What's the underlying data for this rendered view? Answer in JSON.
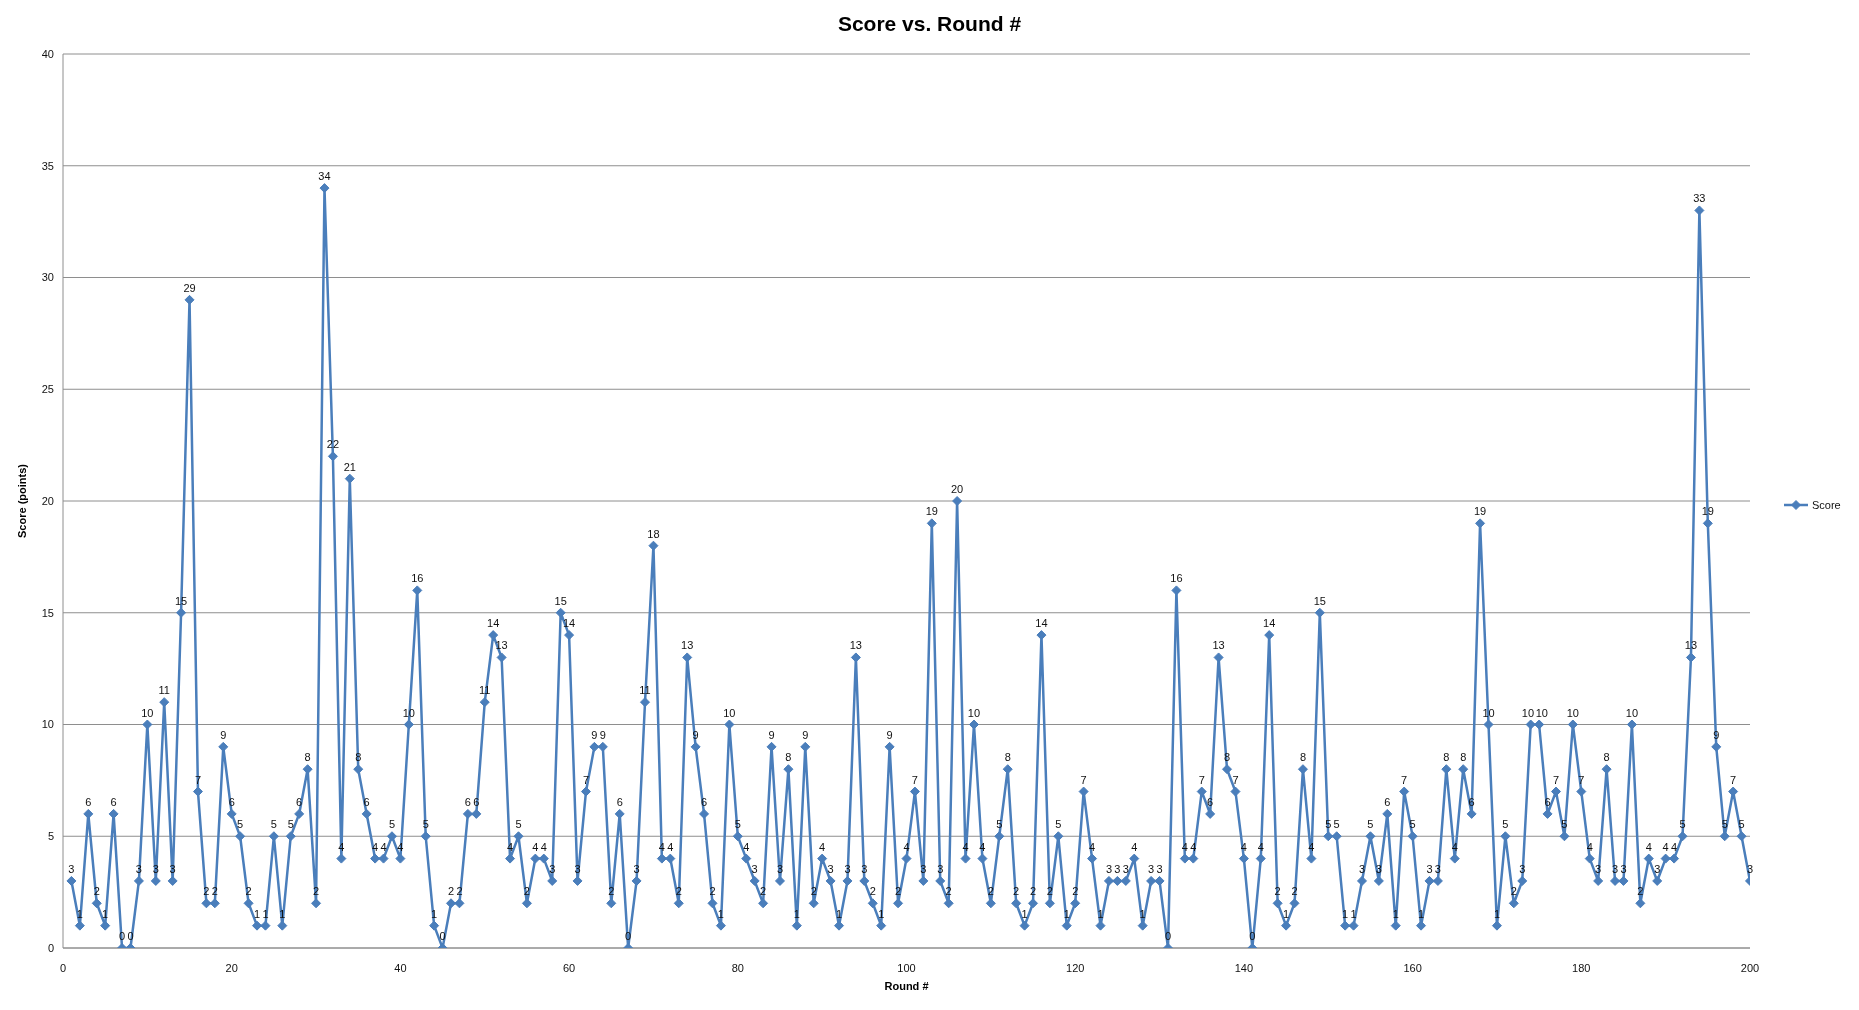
{
  "chart_data": {
    "type": "line",
    "title": "Score vs. Round #",
    "xlabel": "Round #",
    "ylabel": "Score (points)",
    "x": [
      1,
      2,
      3,
      4,
      5,
      6,
      7,
      8,
      9,
      10,
      11,
      12,
      13,
      14,
      15,
      16,
      17,
      18,
      19,
      20,
      21,
      22,
      23,
      24,
      25,
      26,
      27,
      28,
      29,
      30,
      31,
      32,
      33,
      34,
      35,
      36,
      37,
      38,
      39,
      40,
      41,
      42,
      43,
      44,
      45,
      46,
      47,
      48,
      49,
      50,
      51,
      52,
      53,
      54,
      55,
      56,
      57,
      58,
      59,
      60,
      61,
      62,
      63,
      64,
      65,
      66,
      67,
      68,
      69,
      70,
      71,
      72,
      73,
      74,
      75,
      76,
      77,
      78,
      79,
      80,
      81,
      82,
      83,
      84,
      85,
      86,
      87,
      88,
      89,
      90,
      91,
      92,
      93,
      94,
      95,
      96,
      97,
      98,
      99,
      100,
      101,
      102,
      103,
      104,
      105,
      106,
      107,
      108,
      109,
      110,
      111,
      112,
      113,
      114,
      115,
      116,
      117,
      118,
      119,
      120,
      121,
      122,
      123,
      124,
      125,
      126,
      127,
      128,
      129,
      130,
      131,
      132,
      133,
      134,
      135,
      136,
      137,
      138,
      139,
      140,
      141,
      142,
      143,
      144,
      145,
      146,
      147,
      148,
      149,
      150,
      151,
      152,
      153,
      154,
      155,
      156,
      157,
      158,
      159,
      160,
      161,
      162,
      163,
      164,
      165,
      166,
      167,
      168,
      169,
      170,
      171,
      172,
      173,
      174,
      175,
      176,
      177,
      178,
      179,
      180,
      181,
      182,
      183,
      184,
      185,
      186,
      187,
      188,
      189,
      190,
      191,
      192,
      193,
      194,
      195,
      196,
      197,
      198,
      199,
      200
    ],
    "series": [
      {
        "name": "Score",
        "color": "#4a7ebb",
        "values": [
          3,
          1,
          6,
          2,
          1,
          6,
          0,
          0,
          3,
          10,
          3,
          11,
          3,
          15,
          29,
          7,
          2,
          2,
          9,
          6,
          5,
          2,
          1,
          1,
          5,
          1,
          5,
          6,
          8,
          2,
          34,
          22,
          4,
          21,
          8,
          6,
          4,
          4,
          5,
          4,
          10,
          16,
          5,
          1,
          0,
          2,
          2,
          6,
          6,
          11,
          14,
          13,
          4,
          5,
          2,
          4,
          4,
          3,
          15,
          14,
          3,
          7,
          9,
          9,
          2,
          6,
          0,
          3,
          11,
          18,
          4,
          4,
          2,
          13,
          9,
          6,
          2,
          1,
          10,
          5,
          4,
          3,
          2,
          9,
          3,
          8,
          1,
          9,
          2,
          4,
          3,
          1,
          3,
          13,
          3,
          2,
          1,
          9,
          2,
          4,
          7,
          3,
          19,
          3,
          2,
          20,
          4,
          10,
          4,
          2,
          5,
          8,
          2,
          1,
          2,
          14,
          2,
          5,
          1,
          2,
          7,
          4,
          1,
          3,
          3,
          3,
          4,
          1,
          3,
          3,
          0,
          16,
          4,
          4,
          7,
          6,
          13,
          8,
          7,
          4,
          0,
          4,
          14,
          2,
          1,
          2,
          8,
          4,
          15,
          5,
          5,
          1,
          1,
          3,
          5,
          3,
          6,
          1,
          7,
          5,
          1,
          3,
          3,
          8,
          4,
          8,
          6,
          19,
          10,
          1,
          5,
          2,
          3,
          10,
          10,
          6,
          7,
          5,
          10,
          7,
          4,
          3,
          8,
          3,
          3,
          10,
          2,
          4,
          3,
          4,
          4,
          5,
          13,
          33,
          19,
          9,
          5,
          7,
          5,
          3
        ]
      }
    ],
    "xlim": [
      0,
      200
    ],
    "xticks": [
      0,
      20,
      40,
      60,
      80,
      100,
      120,
      140,
      160,
      180,
      200
    ],
    "ylim": [
      0,
      40
    ],
    "yticks": [
      0,
      5,
      10,
      15,
      20,
      25,
      30,
      35,
      40
    ],
    "grid": "y",
    "legend": "right",
    "marker": "diamond",
    "line_style": "solid",
    "data_labels": true
  }
}
